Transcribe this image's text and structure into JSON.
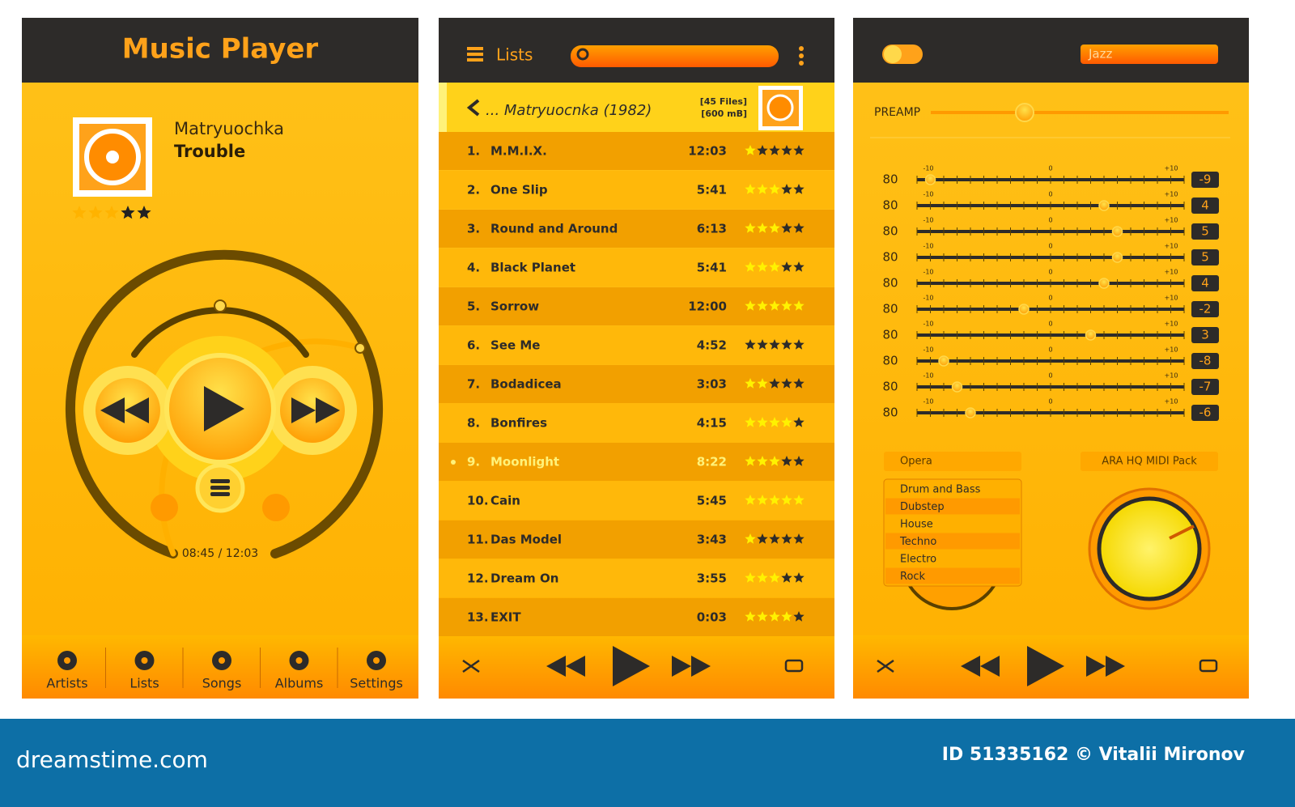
{
  "player": {
    "title": "Music Player",
    "artist": "Matryuochka",
    "song": "Trouble",
    "rating": 3,
    "time": "08:45 / 12:03",
    "nav": [
      "Artists",
      "Lists",
      "Songs",
      "Albums",
      "Settings"
    ]
  },
  "lists": {
    "header": "Lists",
    "album": "... Matryuocnka (1982)",
    "files": "[45 Files]",
    "size": "[600 mB]",
    "tracks": [
      {
        "number": "1.",
        "name": "M.M.I.X.",
        "duration": "12:03",
        "rating": 1
      },
      {
        "number": "2.",
        "name": "One Slip",
        "duration": "5:41",
        "rating": 3
      },
      {
        "number": "3.",
        "name": "Round and Around",
        "duration": "6:13",
        "rating": 3
      },
      {
        "number": "4.",
        "name": "Black Planet",
        "duration": "5:41",
        "rating": 3
      },
      {
        "number": "5.",
        "name": "Sorrow",
        "duration": "12:00",
        "rating": 5
      },
      {
        "number": "6.",
        "name": "See Me",
        "duration": "4:52",
        "rating": 0
      },
      {
        "number": "7.",
        "name": "Bodadicea",
        "duration": "3:03",
        "rating": 2
      },
      {
        "number": "8.",
        "name": "Bonfires",
        "duration": "4:15",
        "rating": 4
      },
      {
        "number": "9.",
        "name": "Moonlight",
        "duration": "8:22",
        "rating": 3
      },
      {
        "number": "10.",
        "name": "Cain",
        "duration": "5:45",
        "rating": 5
      },
      {
        "number": "11.",
        "name": "Das Model",
        "duration": "3:43",
        "rating": 1
      },
      {
        "number": "12.",
        "name": "Dream On",
        "duration": "3:55",
        "rating": 3
      },
      {
        "number": "13.",
        "name": "EXIT",
        "duration": "0:03",
        "rating": 4
      }
    ]
  },
  "equalizer": {
    "preset": "Jazz",
    "preamp_label": "PREAMP",
    "scale": [
      "-10",
      "0",
      "+10"
    ],
    "bands": [
      {
        "frequency": 80,
        "gain": -9
      },
      {
        "frequency": 80,
        "gain": 4
      },
      {
        "frequency": 80,
        "gain": 5
      },
      {
        "frequency": 80,
        "gain": 5
      },
      {
        "frequency": 80,
        "gain": 4
      },
      {
        "frequency": 80,
        "gain": -2
      },
      {
        "frequency": 80,
        "gain": 3
      },
      {
        "frequency": 80,
        "gain": -8
      },
      {
        "frequency": 80,
        "gain": -7
      },
      {
        "frequency": 80,
        "gain": -6
      }
    ],
    "genre": "Opera",
    "genres": [
      "Drum and Bass",
      "Dubstep",
      "House",
      "Techno",
      "Electro",
      "Rock"
    ],
    "midi": "ARA HQ MIDI Pack"
  },
  "footer": {
    "site": "dreamstime.com",
    "credit": "ID 51335162 © Vitalii Mironov"
  }
}
